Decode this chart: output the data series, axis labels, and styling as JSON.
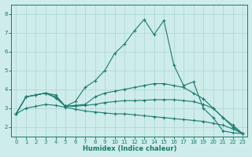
{
  "xlabel": "Humidex (Indice chaleur)",
  "ylabel": "",
  "xlim": [
    -0.5,
    23.5
  ],
  "ylim": [
    1.5,
    8.5
  ],
  "yticks": [
    2,
    3,
    4,
    5,
    6,
    7,
    8
  ],
  "xticks": [
    0,
    1,
    2,
    3,
    4,
    5,
    6,
    7,
    8,
    9,
    10,
    11,
    12,
    13,
    14,
    15,
    16,
    17,
    18,
    19,
    20,
    21,
    22,
    23
  ],
  "bg_color": "#ceecea",
  "line_color": "#1a7a6e",
  "grid_color": "#aed4d0",
  "lines": [
    {
      "x": [
        0,
        1,
        2,
        3,
        4,
        5,
        6,
        7,
        8,
        9,
        10,
        11,
        12,
        13,
        14,
        15,
        16,
        17,
        18,
        19,
        20,
        21,
        22,
        23
      ],
      "y": [
        2.7,
        3.6,
        3.7,
        3.8,
        3.7,
        3.1,
        3.35,
        4.1,
        4.45,
        5.0,
        5.9,
        6.4,
        7.1,
        7.7,
        6.9,
        7.65,
        5.3,
        4.2,
        4.4,
        3.0,
        2.5,
        1.8,
        1.7,
        1.65
      ]
    },
    {
      "x": [
        0,
        1,
        2,
        3,
        4,
        5,
        6,
        7,
        8,
        9,
        10,
        11,
        12,
        13,
        14,
        15,
        16,
        17,
        18,
        19,
        20,
        21,
        22,
        23
      ],
      "y": [
        2.7,
        3.6,
        3.7,
        3.8,
        3.6,
        3.1,
        3.15,
        3.2,
        3.6,
        3.8,
        3.9,
        4.0,
        4.1,
        4.2,
        4.3,
        4.3,
        4.2,
        4.1,
        3.8,
        3.5,
        3.0,
        2.5,
        2.1,
        1.65
      ]
    },
    {
      "x": [
        0,
        1,
        2,
        3,
        4,
        5,
        6,
        7,
        8,
        9,
        10,
        11,
        12,
        13,
        14,
        15,
        16,
        17,
        18,
        19,
        20,
        21,
        22,
        23
      ],
      "y": [
        2.7,
        3.6,
        3.7,
        3.8,
        3.55,
        3.1,
        3.1,
        3.15,
        3.2,
        3.3,
        3.35,
        3.4,
        3.4,
        3.42,
        3.45,
        3.45,
        3.45,
        3.4,
        3.35,
        3.2,
        3.0,
        2.5,
        2.0,
        1.65
      ]
    },
    {
      "x": [
        0,
        1,
        2,
        3,
        4,
        5,
        6,
        7,
        8,
        9,
        10,
        11,
        12,
        13,
        14,
        15,
        16,
        17,
        18,
        19,
        20,
        21,
        22,
        23
      ],
      "y": [
        2.7,
        3.0,
        3.1,
        3.2,
        3.15,
        3.05,
        2.95,
        2.85,
        2.8,
        2.75,
        2.7,
        2.7,
        2.65,
        2.6,
        2.55,
        2.5,
        2.45,
        2.4,
        2.35,
        2.3,
        2.2,
        2.1,
        1.9,
        1.65
      ]
    }
  ],
  "figsize": [
    3.2,
    2.0
  ],
  "dpi": 100
}
